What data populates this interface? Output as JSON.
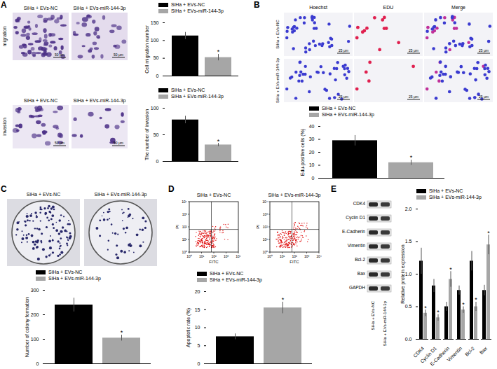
{
  "panels": {
    "A": {
      "letter": "A",
      "row_labels": [
        "migration",
        "invasion"
      ],
      "image_captions": [
        "SiHa + EVs-NC",
        "SiHa + EVs-miR-144-3p"
      ],
      "scale_bar": "50 μm"
    },
    "B": {
      "letter": "B",
      "column_headers": [
        "Hoechst",
        "EDU",
        "Merge"
      ],
      "row_labels": [
        "SiHa + EVs-NC",
        "SiHa + EVs-miR-144-3p"
      ],
      "scale_bar": "25 μm"
    },
    "C": {
      "letter": "C",
      "image_captions": [
        "SiHa + EVs-NC",
        "SiHa + EVs-miR-144-3p"
      ]
    },
    "D": {
      "letter": "D",
      "image_captions": [
        "SiHa + EVs-NC",
        "SiHa + EVs-miR-144-3p"
      ],
      "x_label": "FITC",
      "y_label": "PI",
      "ticks": [
        {
          "value": 0,
          "label": "10⁰"
        },
        {
          "value": 1,
          "label": "10¹"
        },
        {
          "value": 2,
          "label": "10²"
        },
        {
          "value": 3,
          "label": "10³"
        },
        {
          "value": 4,
          "label": "10⁴"
        }
      ]
    },
    "E": {
      "letter": "E",
      "blot_labels": [
        "CDK4",
        "Cyclin D1",
        "E-Cadherin",
        "Vimentin",
        "Bcl-2",
        "Bax",
        "GAPDH"
      ],
      "lane_labels": [
        "SiHa + EVs-NC",
        "SiHa + EVs-miR-144-3p"
      ]
    }
  },
  "chart_data": [
    {
      "type": "bar",
      "categories": [
        null
      ],
      "ylabel": "Cell migration number",
      "ylim": [
        0,
        150
      ],
      "yticks": [
        0,
        50,
        100,
        150
      ],
      "tick_labels": "y",
      "legend": "top",
      "series": [
        {
          "name": "SiHa + EVs-NC",
          "color": "#000000",
          "values": [
            113
          ],
          "errors": [
            10
          ],
          "significance": [
            null
          ]
        },
        {
          "name": "SiHa + EVs-miR-144-3p",
          "color": "#a6a6a6",
          "values": [
            52
          ],
          "errors": [
            9
          ],
          "significance": [
            "*"
          ]
        }
      ]
    },
    {
      "type": "bar",
      "categories": [
        null
      ],
      "ylabel": "The number of invasion",
      "ylim": [
        0,
        100
      ],
      "yticks": [
        0,
        50,
        100
      ],
      "tick_labels": "y",
      "legend": "top",
      "series": [
        {
          "name": "SiHa + EVs-NC",
          "color": "#000000",
          "values": [
            78
          ],
          "errors": [
            7
          ],
          "significance": [
            null
          ]
        },
        {
          "name": "SiHa + EVs-miR-144-3p",
          "color": "#a6a6a6",
          "values": [
            31
          ],
          "errors": [
            3
          ],
          "significance": [
            "*"
          ]
        }
      ]
    },
    {
      "type": "bar",
      "categories": [
        null
      ],
      "ylabel": "Edu-positive cells (%)",
      "ylim": [
        0,
        40
      ],
      "yticks": [
        0,
        10,
        20,
        30,
        40
      ],
      "tick_labels": "y",
      "legend": "top",
      "series": [
        {
          "name": "SiHa + EVs-NC",
          "color": "#000000",
          "values": [
            29
          ],
          "errors": [
            4
          ],
          "significance": [
            null
          ]
        },
        {
          "name": "SiHa + EVs-miR-144-3p",
          "color": "#a6a6a6",
          "values": [
            12
          ],
          "errors": [
            2
          ],
          "significance": [
            "*"
          ]
        }
      ]
    },
    {
      "type": "bar",
      "categories": [
        null
      ],
      "ylabel": "Number of colony formation",
      "ylim": [
        0,
        300
      ],
      "yticks": [
        0,
        100,
        200,
        300
      ],
      "tick_labels": "y",
      "legend": "top",
      "series": [
        {
          "name": "SiHa + EVs-NC",
          "color": "#000000",
          "values": [
            240
          ],
          "errors": [
            28
          ],
          "significance": [
            null
          ]
        },
        {
          "name": "SiHa + EVs-miR-144-3p",
          "color": "#a6a6a6",
          "values": [
            105
          ],
          "errors": [
            12
          ],
          "significance": [
            "*"
          ]
        }
      ]
    },
    {
      "type": "bar",
      "categories": [
        null
      ],
      "ylabel": "Apoptotic rate (%)",
      "ylim": [
        0,
        20
      ],
      "yticks": [
        0,
        5,
        10,
        15,
        20
      ],
      "tick_labels": "y",
      "legend": "top",
      "series": [
        {
          "name": "SiHa + EVs-NC",
          "color": "#000000",
          "values": [
            7.5
          ],
          "errors": [
            0.8
          ],
          "significance": [
            null
          ]
        },
        {
          "name": "SiHa + EVs-miR-144-3p",
          "color": "#a6a6a6",
          "values": [
            15.5
          ],
          "errors": [
            1.6
          ],
          "significance": [
            "*"
          ]
        }
      ]
    },
    {
      "type": "bar",
      "categories": [
        "CDK4",
        "Cyclin D1",
        "E-Cadherin",
        "Vimentin",
        "Bcl-2",
        "Bax"
      ],
      "ylabel": "Relative protein expression",
      "ylim": [
        0,
        2
      ],
      "yticks": [
        {
          "value": 0,
          "label": "0.0"
        },
        0.5,
        {
          "value": 1,
          "label": "1.0"
        },
        1.5,
        {
          "value": 2,
          "label": "2.0"
        }
      ],
      "tick_labels": true,
      "legend": "top",
      "series": [
        {
          "name": "SiHa + EVs-NC",
          "color": "#000000",
          "values": [
            1.2,
            0.82,
            0.5,
            0.75,
            1.2,
            0.75
          ],
          "errors": [
            0.2,
            0.1,
            0.07,
            0.07,
            0.15,
            0.08
          ],
          "significance": [
            null,
            null,
            null,
            null,
            null,
            null
          ]
        },
        {
          "name": "SiHa + EVs-miR-144-3p",
          "color": "#a6a6a6",
          "values": [
            0.4,
            0.33,
            0.92,
            0.45,
            0.5,
            1.45
          ],
          "errors": [
            0.05,
            0.05,
            0.12,
            0.05,
            0.07,
            0.15
          ],
          "significance": [
            "*",
            "*",
            "*",
            "*",
            "*",
            "*"
          ]
        }
      ]
    }
  ]
}
